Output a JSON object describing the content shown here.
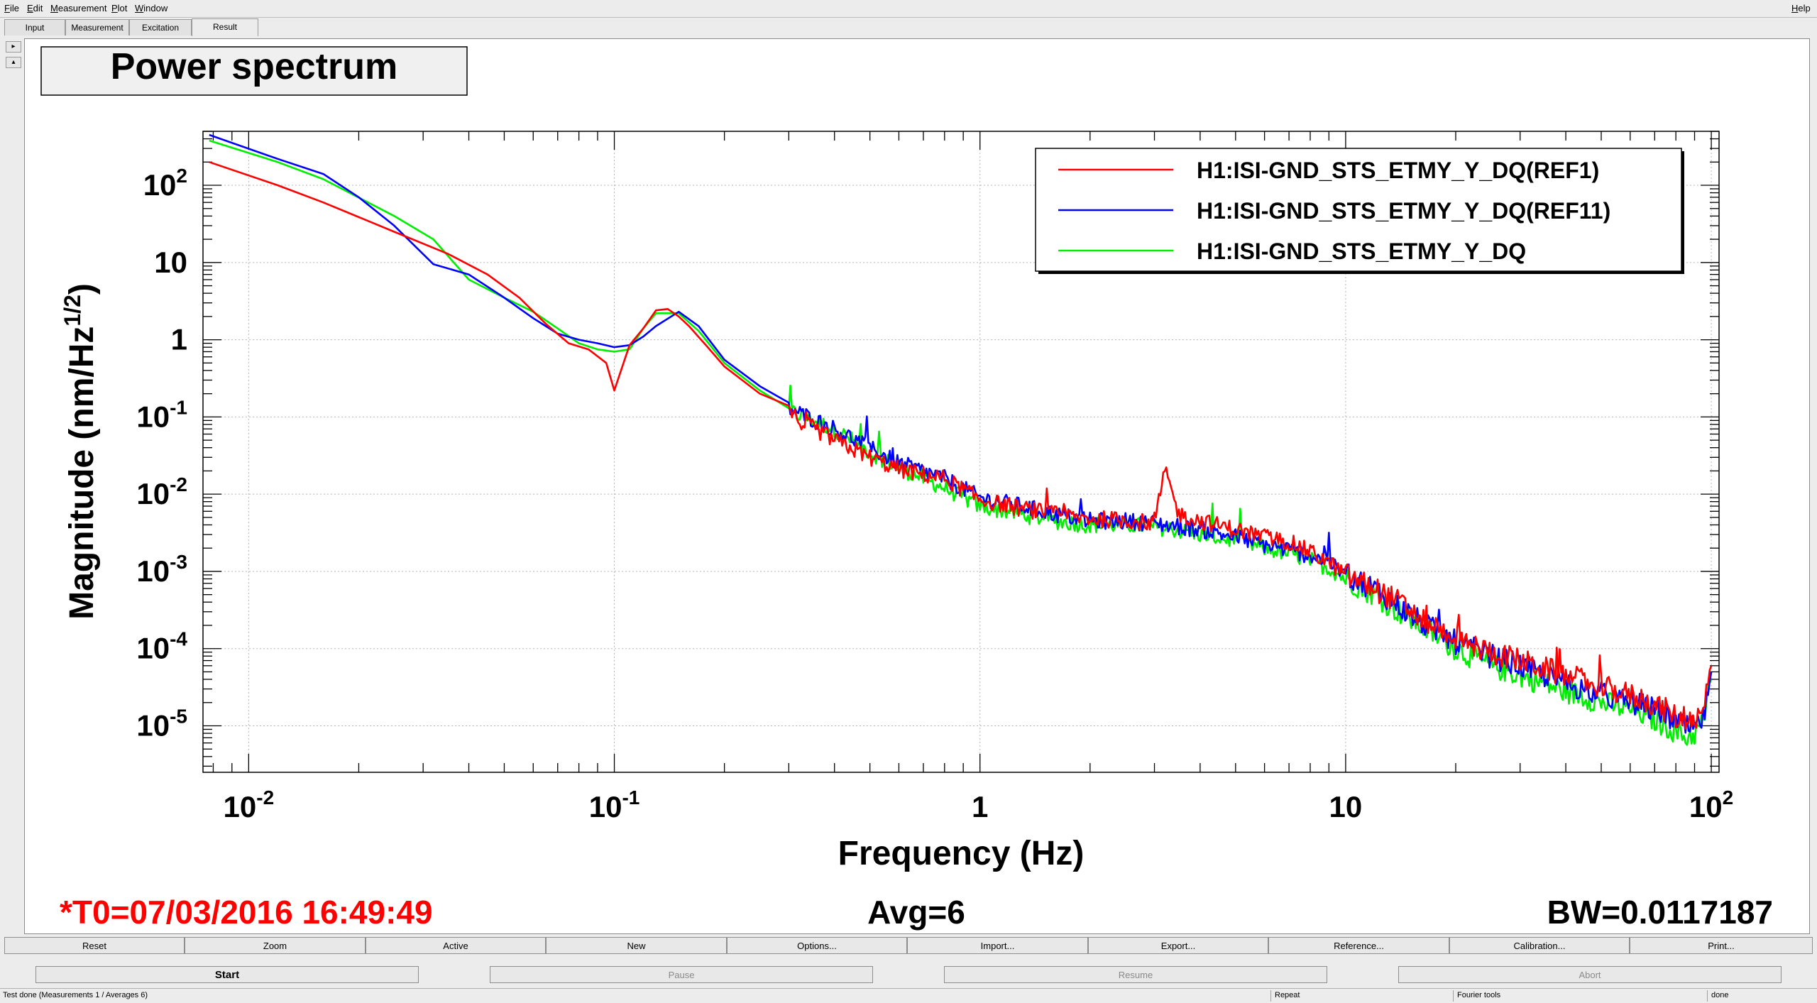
{
  "menubar": {
    "items": [
      {
        "key": "F",
        "rest": "ile"
      },
      {
        "key": "E",
        "rest": "dit"
      },
      {
        "key": "M",
        "rest": "easurement"
      },
      {
        "key": "P",
        "rest": "lot"
      },
      {
        "key": "W",
        "rest": "indow"
      }
    ],
    "help": {
      "key": "H",
      "rest": "elp"
    }
  },
  "tabs": [
    "Input",
    "Measurement",
    "Excitation",
    "Result"
  ],
  "plot": {
    "title": "Power spectrum",
    "footer_left": "*T0=07/03/2016 16:49:49",
    "footer_center": "Avg=6",
    "footer_right": "BW=0.0117187",
    "colors": {
      "ref1": "#ff0000",
      "ref11": "#0000ff",
      "live": "#00ee00",
      "footer_left": "#ff0000"
    }
  },
  "chart_data": {
    "type": "line",
    "xlabel": "Frequency (Hz)",
    "ylabel": "Magnitude (nm/Hz^(1/2))",
    "xscale": "log",
    "yscale": "log",
    "xlim": [
      0.0075,
      105
    ],
    "ylim": [
      2.5e-06,
      500
    ],
    "grid": true,
    "legend_position": "top-right",
    "x_ticks": [
      {
        "value": 0.01,
        "base": "10",
        "exp": "-2"
      },
      {
        "value": 0.1,
        "base": "10",
        "exp": "-1"
      },
      {
        "value": 1,
        "base": "1",
        "exp": ""
      },
      {
        "value": 10,
        "base": "10",
        "exp": ""
      },
      {
        "value": 100,
        "base": "10",
        "exp": "2"
      }
    ],
    "y_ticks": [
      {
        "value": 100,
        "base": "10",
        "exp": "2"
      },
      {
        "value": 10,
        "base": "10",
        "exp": ""
      },
      {
        "value": 1,
        "base": "1",
        "exp": ""
      },
      {
        "value": 0.1,
        "base": "10",
        "exp": "-1"
      },
      {
        "value": 0.01,
        "base": "10",
        "exp": "-2"
      },
      {
        "value": 0.001,
        "base": "10",
        "exp": "-3"
      },
      {
        "value": 0.0001,
        "base": "10",
        "exp": "-4"
      },
      {
        "value": 1e-05,
        "base": "10",
        "exp": "-5"
      }
    ],
    "series": [
      {
        "name": "H1:ISI-GND_STS_ETMY_Y_DQ(REF1)",
        "color": "#ff0000",
        "x": [
          0.0078,
          0.012,
          0.016,
          0.025,
          0.035,
          0.045,
          0.055,
          0.065,
          0.075,
          0.085,
          0.095,
          0.1,
          0.11,
          0.12,
          0.13,
          0.14,
          0.15,
          0.16,
          0.18,
          0.2,
          0.25,
          0.3,
          0.4,
          0.5,
          0.6,
          0.7,
          0.8,
          1,
          1.3,
          1.6,
          2,
          2.5,
          3,
          3.2,
          3.5,
          4,
          5,
          6,
          7,
          8,
          9,
          10,
          12,
          14,
          16,
          18,
          20,
          22,
          25,
          30,
          35,
          40,
          45,
          50,
          55,
          60,
          65,
          70,
          75,
          80,
          85,
          90,
          95,
          100
        ],
        "y": [
          200,
          100,
          60,
          25,
          13,
          7,
          3.5,
          1.6,
          0.9,
          0.75,
          0.5,
          0.22,
          0.85,
          1.4,
          2.4,
          2.5,
          2.0,
          1.5,
          0.8,
          0.45,
          0.2,
          0.11,
          0.05,
          0.03,
          0.021,
          0.018,
          0.016,
          0.0085,
          0.0065,
          0.0055,
          0.0048,
          0.0046,
          0.0042,
          0.02,
          0.0055,
          0.0045,
          0.0035,
          0.0028,
          0.0024,
          0.0018,
          0.0013,
          0.0009,
          0.0006,
          0.0004,
          0.00025,
          0.00018,
          0.00014,
          0.00011,
          9e-05,
          7e-05,
          5.5e-05,
          4.5e-05,
          3.8e-05,
          3.2e-05,
          2.8e-05,
          2.5e-05,
          2.2e-05,
          1.9e-05,
          1.6e-05,
          1.3e-05,
          1.1e-05,
          1e-05,
          1.5e-05,
          6e-05
        ]
      },
      {
        "name": "H1:ISI-GND_STS_ETMY_Y_DQ(REF11)",
        "color": "#0000ff",
        "x": [
          0.0078,
          0.012,
          0.016,
          0.02,
          0.025,
          0.032,
          0.04,
          0.05,
          0.06,
          0.07,
          0.08,
          0.09,
          0.1,
          0.11,
          0.12,
          0.13,
          0.15,
          0.17,
          0.2,
          0.25,
          0.3,
          0.4,
          0.5,
          0.6,
          0.7,
          0.8,
          1,
          1.3,
          1.6,
          2,
          2.5,
          3,
          3.5,
          4,
          5,
          6,
          7,
          8,
          9,
          10,
          12,
          14,
          16,
          18,
          20,
          22,
          25,
          30,
          35,
          40,
          45,
          50,
          55,
          60,
          65,
          70,
          75,
          80,
          85,
          90,
          95,
          100
        ],
        "y": [
          450,
          220,
          140,
          70,
          30,
          9.5,
          7,
          3.5,
          1.9,
          1.2,
          1.0,
          0.9,
          0.8,
          0.85,
          1.1,
          1.5,
          2.3,
          1.5,
          0.55,
          0.25,
          0.13,
          0.07,
          0.04,
          0.025,
          0.02,
          0.016,
          0.009,
          0.007,
          0.0055,
          0.0045,
          0.0045,
          0.0042,
          0.0038,
          0.0035,
          0.0028,
          0.0022,
          0.0019,
          0.0016,
          0.0013,
          0.0009,
          0.0006,
          0.00035,
          0.00022,
          0.00016,
          0.00012,
          0.0001,
          8e-05,
          6e-05,
          4.5e-05,
          3.5e-05,
          3e-05,
          2.6e-05,
          2.2e-05,
          2e-05,
          1.8e-05,
          1.6e-05,
          1.4e-05,
          1.1e-05,
          9.5e-06,
          9e-06,
          1.2e-05,
          5e-05
        ]
      },
      {
        "name": "H1:ISI-GND_STS_ETMY_Y_DQ",
        "color": "#00ee00",
        "x": [
          0.0078,
          0.012,
          0.016,
          0.025,
          0.032,
          0.04,
          0.05,
          0.06,
          0.07,
          0.08,
          0.09,
          0.1,
          0.11,
          0.12,
          0.13,
          0.15,
          0.17,
          0.2,
          0.25,
          0.3,
          0.4,
          0.5,
          0.6,
          0.7,
          0.8,
          1,
          1.3,
          1.6,
          2,
          2.5,
          3,
          3.5,
          4,
          5,
          6,
          7,
          8,
          9,
          10,
          12,
          14,
          16,
          18,
          20,
          22,
          25,
          30,
          35,
          40,
          45,
          50,
          55,
          60,
          65,
          70,
          75,
          80,
          85,
          90,
          95,
          100
        ],
        "y": [
          380,
          200,
          120,
          40,
          20,
          6,
          3.5,
          2.3,
          1.4,
          0.9,
          0.75,
          0.7,
          0.75,
          1.4,
          2.2,
          2.2,
          1.3,
          0.5,
          0.22,
          0.12,
          0.07,
          0.035,
          0.022,
          0.016,
          0.012,
          0.007,
          0.0055,
          0.0045,
          0.004,
          0.004,
          0.0038,
          0.0034,
          0.003,
          0.0025,
          0.002,
          0.0017,
          0.0014,
          0.0011,
          0.0008,
          0.0005,
          0.0003,
          0.0002,
          0.00014,
          0.0001,
          8e-05,
          6e-05,
          4.5e-05,
          3.5e-05,
          2.8e-05,
          2.4e-05,
          2e-05,
          1.8e-05,
          1.6e-05,
          1.4e-05,
          1.2e-05,
          1e-05,
          8.5e-06,
          7e-06,
          8e-06,
          1.1e-05,
          4e-05
        ]
      }
    ]
  },
  "toolbar": [
    "Reset",
    "Zoom",
    "Active",
    "New",
    "Options...",
    "Import...",
    "Export...",
    "Reference...",
    "Calibration...",
    "Print..."
  ],
  "controls": {
    "start": "Start",
    "pause": "Pause",
    "resume": "Resume",
    "abort": "Abort"
  },
  "status": {
    "left": "Test done (Measurements 1 / Averages 6)",
    "repeat": "Repeat",
    "tools": "Fourier tools",
    "state": "done"
  }
}
